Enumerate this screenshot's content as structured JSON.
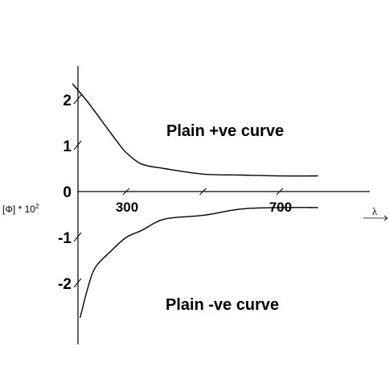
{
  "chart_data": {
    "type": "line",
    "title": "",
    "xlabel": "λ",
    "ylabel": "[Φ] * 10",
    "ylabel_sup": "2",
    "xlim": [
      100,
      900
    ],
    "ylim": [
      -2.8,
      2.4
    ],
    "x_ticks": [
      {
        "value": 300,
        "label": "300"
      },
      {
        "value": 500,
        "label": ""
      },
      {
        "value": 700,
        "label": "700"
      }
    ],
    "y_ticks": [
      {
        "value": 2,
        "label": "2"
      },
      {
        "value": 1,
        "label": "1"
      },
      {
        "value": 0,
        "label": "0"
      },
      {
        "value": -1,
        "label": "-1"
      },
      {
        "value": -2,
        "label": "-2"
      }
    ],
    "grid": false,
    "series": [
      {
        "name": "Plain +ve curve",
        "x": [
          160,
          200,
          240,
          280,
          300,
          340,
          400,
          500,
          600,
          700,
          800
        ],
        "y": [
          2.35,
          1.95,
          1.5,
          1.05,
          0.85,
          0.6,
          0.5,
          0.38,
          0.36,
          0.34,
          0.34
        ]
      },
      {
        "name": "Plain -ve curve",
        "x": [
          180,
          200,
          220,
          260,
          300,
          340,
          400,
          500,
          600,
          700,
          800
        ],
        "y": [
          -2.75,
          -2.1,
          -1.65,
          -1.3,
          -1.0,
          -0.85,
          -0.6,
          -0.52,
          -0.38,
          -0.35,
          -0.35
        ]
      }
    ]
  }
}
